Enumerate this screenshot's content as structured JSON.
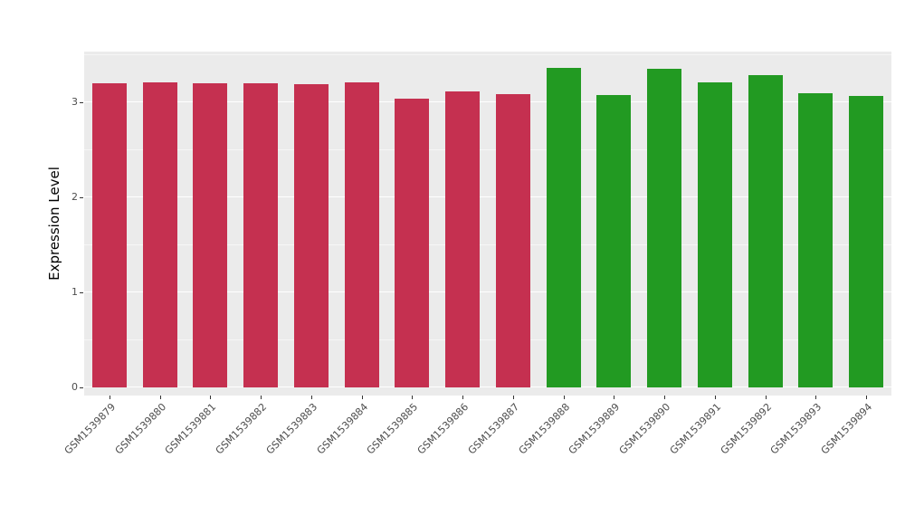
{
  "chart_data": {
    "type": "bar",
    "title": "",
    "xlabel": "",
    "ylabel": "Expression Level",
    "categories": [
      "GSM1539879",
      "GSM1539880",
      "GSM1539881",
      "GSM1539882",
      "GSM1539883",
      "GSM1539884",
      "GSM1539885",
      "GSM1539886",
      "GSM1539887",
      "GSM1539888",
      "GSM1539889",
      "GSM1539890",
      "GSM1539891",
      "GSM1539892",
      "GSM1539893",
      "GSM1539894"
    ],
    "values": [
      3.2,
      3.21,
      3.2,
      3.2,
      3.19,
      3.21,
      3.04,
      3.11,
      3.09,
      3.36,
      3.08,
      3.35,
      3.21,
      3.29,
      3.1,
      3.07
    ],
    "bar_groups": [
      "red",
      "red",
      "red",
      "red",
      "red",
      "red",
      "red",
      "red",
      "red",
      "green",
      "green",
      "green",
      "green",
      "green",
      "green",
      "green"
    ],
    "palette": {
      "red": "#C53050",
      "green": "#229A22"
    },
    "ylim": [
      0,
      3.53
    ],
    "yticks": [
      0,
      1,
      2,
      3
    ],
    "grid": "white-major-and-minor-on-gray",
    "panel_background": "#EBEBEB",
    "legend": "none"
  }
}
